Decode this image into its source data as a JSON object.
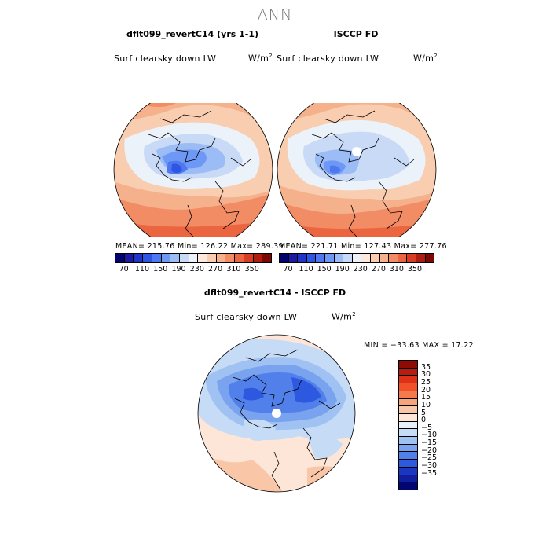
{
  "figure_title": "ANN",
  "panels": [
    {
      "title": "dflt099_revertC14 (yrs 1-1)",
      "field": "Surf clearsky down LW",
      "units": "W/m",
      "units_exp": "2",
      "stats_text": "MEAN= 215.76   Min= 126.22   Max= 289.39",
      "stats": {
        "mean": 215.76,
        "min": 126.22,
        "max": 289.39
      }
    },
    {
      "title": "ISCCP FD",
      "field": "Surf clearsky down LW",
      "units": "W/m",
      "units_exp": "2",
      "stats_text": "MEAN= 221.71   Min= 127.43   Max= 277.76",
      "stats": {
        "mean": 221.71,
        "min": 127.43,
        "max": 277.76
      }
    }
  ],
  "abs_colorbar": {
    "labels": [
      "70",
      "110",
      "150",
      "190",
      "230",
      "270",
      "310",
      "350"
    ],
    "colors": [
      "#03036e",
      "#1a1aa3",
      "#1f35c9",
      "#2e55e3",
      "#4d78ef",
      "#6d98f5",
      "#9cbcf5",
      "#c8daf6",
      "#ebf2fa",
      "#fde9dc",
      "#f8cdb0",
      "#f5b08c",
      "#f28c65",
      "#ea6540",
      "#d93c20",
      "#b01d10",
      "#7a0803"
    ]
  },
  "diff_panel": {
    "title": "dflt099_revertC14 - ISCCP FD",
    "field": "Surf clearsky down LW",
    "units": "W/m",
    "units_exp": "2",
    "minmax_text": "MIN = −33.63  MAX =   17.22",
    "min": -33.63,
    "max": 17.22
  },
  "diff_colorbar": {
    "labels": [
      "35",
      "30",
      "25",
      "20",
      "15",
      "10",
      "5",
      "0",
      "−5",
      "−10",
      "−15",
      "−20",
      "−25",
      "−30",
      "−35"
    ],
    "colors_top_to_bottom": [
      "#8f0a04",
      "#b81c10",
      "#dd3217",
      "#f0502a",
      "#f47a4e",
      "#f7a37c",
      "#f9c7a8",
      "#fde6d7",
      "#e8f0fa",
      "#c6dbf6",
      "#9fc2f3",
      "#7aa3ef",
      "#5280eb",
      "#2d59e0",
      "#1b37c2",
      "#0f1f9e",
      "#04066f"
    ]
  }
}
